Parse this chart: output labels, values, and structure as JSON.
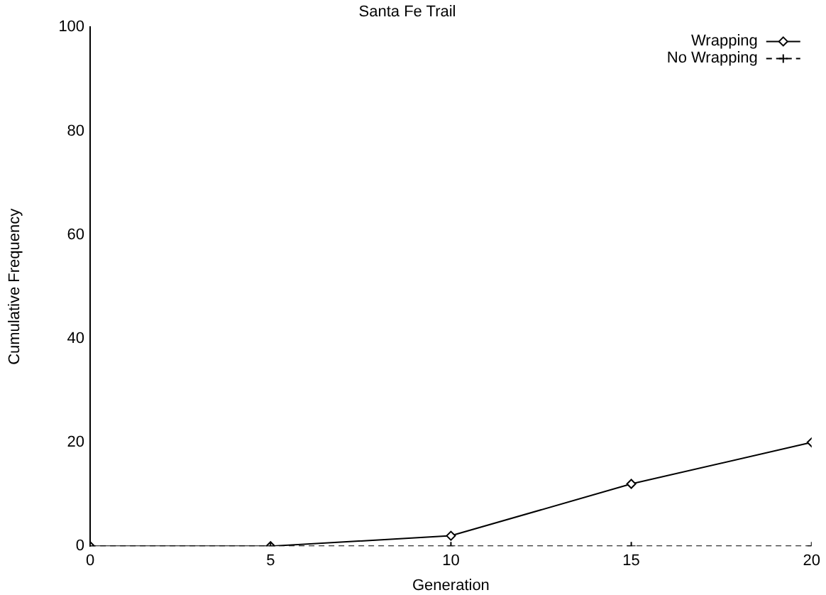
{
  "chart_data": {
    "type": "line",
    "title": "Santa Fe Trail",
    "xlabel": "Generation",
    "ylabel": "Cumulative Frequency",
    "x": [
      0,
      5,
      10,
      15,
      20
    ],
    "series": [
      {
        "name": "Wrapping",
        "color": "#000000",
        "values": [
          0,
          0,
          2,
          12,
          20
        ],
        "marker": "diamond",
        "line_style": "solid"
      },
      {
        "name": "No Wrapping",
        "color": "#000000",
        "values": [
          0,
          0,
          0,
          0,
          0
        ],
        "marker": "cross",
        "line_style": "dashed"
      }
    ],
    "xlim": [
      0,
      20
    ],
    "xticks": [
      0,
      5,
      10,
      15,
      20
    ],
    "ylim": [
      0,
      100
    ],
    "yticks": [
      0,
      20,
      40,
      60,
      80,
      100
    ],
    "grid": false,
    "legend": "top right"
  }
}
